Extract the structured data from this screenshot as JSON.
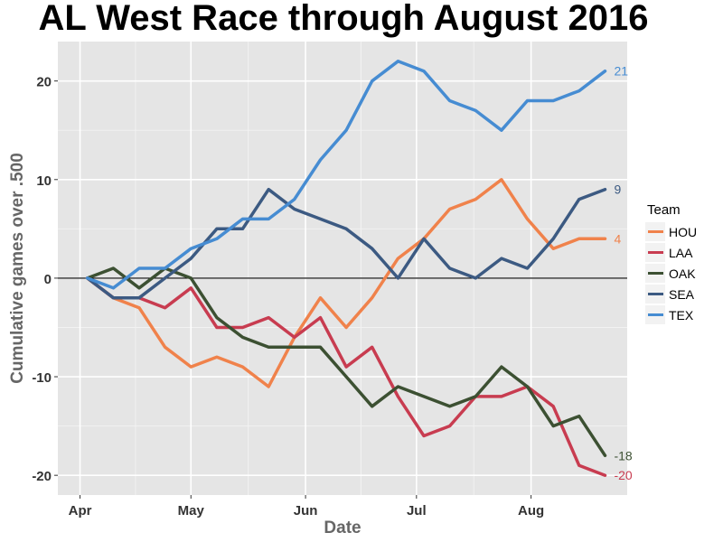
{
  "chart_data": {
    "type": "line",
    "title": "AL West Race through August 2016",
    "xlabel": "Date",
    "ylabel": "Cumulative games over .500",
    "x": [
      "2016-04-03",
      "2016-04-10",
      "2016-04-17",
      "2016-04-24",
      "2016-05-01",
      "2016-05-08",
      "2016-05-15",
      "2016-05-22",
      "2016-05-29",
      "2016-06-05",
      "2016-06-12",
      "2016-06-19",
      "2016-06-26",
      "2016-07-03",
      "2016-07-10",
      "2016-07-17",
      "2016-07-24",
      "2016-07-31",
      "2016-08-07",
      "2016-08-14",
      "2016-08-21"
    ],
    "x_ticks": [
      {
        "label": "Apr",
        "date": "2016-04-01"
      },
      {
        "label": "May",
        "date": "2016-05-01"
      },
      {
        "label": "Jun",
        "date": "2016-06-01"
      },
      {
        "label": "Jul",
        "date": "2016-07-01"
      },
      {
        "label": "Aug",
        "date": "2016-08-01"
      }
    ],
    "xlim": [
      "2016-03-26",
      "2016-08-27"
    ],
    "ylim": [
      -22,
      24
    ],
    "y_ticks": [
      -20,
      -10,
      0,
      10,
      20
    ],
    "grid": true,
    "reference_line_y": 0,
    "legend_title": "Team",
    "legend_position": "right",
    "series": [
      {
        "name": "HOU",
        "color": "#f0824b",
        "end_label": "4",
        "values": [
          0,
          -2,
          -3,
          -7,
          -9,
          -8,
          -9,
          -11,
          -6,
          -2,
          -5,
          -2,
          2,
          4,
          7,
          8,
          10,
          6,
          3,
          4,
          4
        ]
      },
      {
        "name": "LAA",
        "color": "#c83c50",
        "end_label": "-20",
        "values": [
          0,
          -2,
          -2,
          -3,
          -1,
          -5,
          -5,
          -4,
          -6,
          -4,
          -9,
          -7,
          -12,
          -16,
          -15,
          -12,
          -12,
          -11,
          -13,
          -19,
          -20
        ]
      },
      {
        "name": "OAK",
        "color": "#3c5032",
        "end_label": "-18",
        "values": [
          0,
          1,
          -1,
          1,
          0,
          -4,
          -6,
          -7,
          -7,
          -7,
          -10,
          -13,
          -11,
          -12,
          -13,
          -12,
          -9,
          -11,
          -15,
          -14,
          -18
        ]
      },
      {
        "name": "SEA",
        "color": "#3c5a82",
        "end_label": "9",
        "values": [
          0,
          -2,
          -2,
          0,
          2,
          5,
          5,
          9,
          7,
          6,
          5,
          3,
          0,
          4,
          1,
          0,
          2,
          1,
          4,
          8,
          9
        ]
      },
      {
        "name": "TEX",
        "color": "#468cd2",
        "end_label": "21",
        "values": [
          0,
          -1,
          1,
          1,
          3,
          4,
          6,
          6,
          8,
          12,
          15,
          20,
          22,
          21,
          18,
          17,
          15,
          18,
          18,
          19,
          21
        ]
      }
    ]
  }
}
